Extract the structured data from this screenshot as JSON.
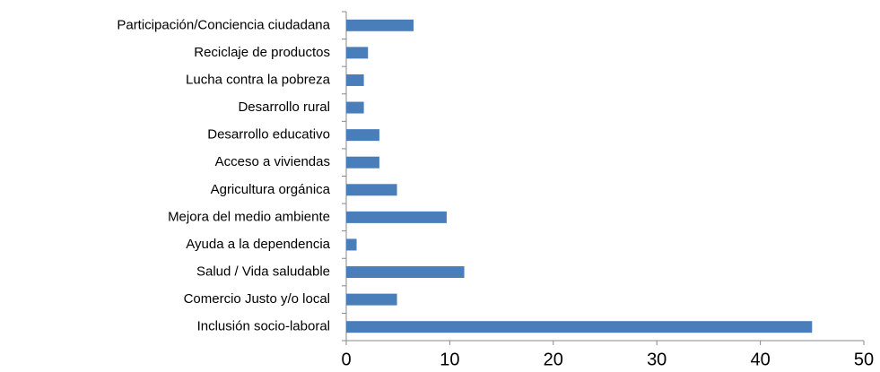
{
  "chart_data": {
    "type": "barh",
    "categories": [
      "Participación/Conciencia ciudadana",
      "Reciclaje de productos",
      "Lucha contra la pobreza",
      "Desarrollo rural",
      "Desarrollo educativo",
      "Acceso a viviendas",
      "Agricultura orgánica",
      "Mejora del medio ambiente",
      "Ayuda a la dependencia",
      "Salud / Vida saludable",
      "Comercio Justo y/o local",
      "Inclusión socio-laboral"
    ],
    "values": [
      6.5,
      2.1,
      1.7,
      1.7,
      3.2,
      3.2,
      4.9,
      9.7,
      1.0,
      11.4,
      4.9,
      45
    ],
    "color": "#4a7ebb",
    "xlim": [
      0,
      50
    ],
    "xticks": [
      0,
      10,
      20,
      30,
      40,
      50
    ],
    "grid": false
  }
}
